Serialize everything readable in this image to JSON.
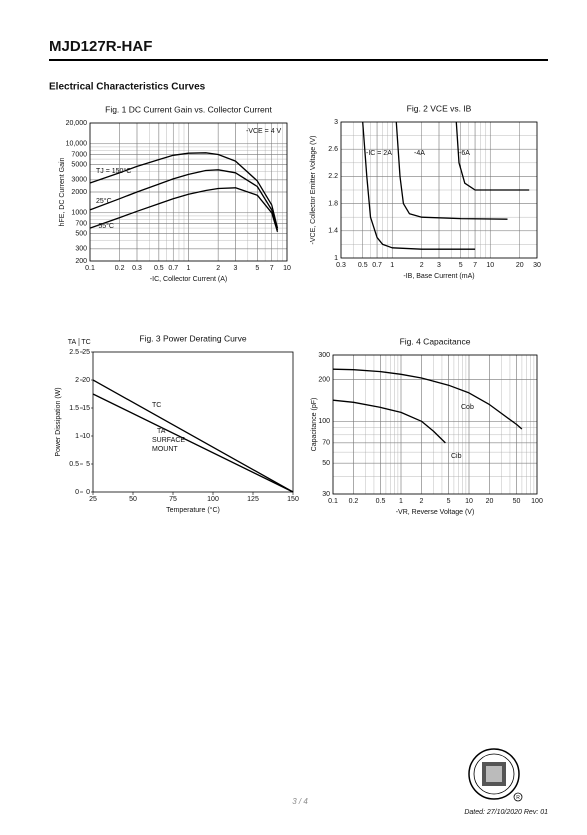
{
  "header": {
    "title": "MJD127R-HAF",
    "section_title": "Electrical Characteristics Curves"
  },
  "footer": {
    "page": "3 / 4",
    "dated": "Dated: 27/10/2020 Rev: 01"
  },
  "chart_data": [
    {
      "type": "line",
      "title": "Fig. 1 DC Current Gain vs. Collector Current",
      "x_label": "-IC, Collector Current (A)",
      "y_label": "hFE, DC Current Gain",
      "annotation": "-VCE = 4 V",
      "xlog": true,
      "ylog": true,
      "grid": true,
      "minor_grid": true,
      "xlim": [
        0.1,
        10
      ],
      "ylim": [
        200,
        20000
      ],
      "xticks": [
        0.1,
        0.2,
        0.3,
        0.5,
        0.7,
        1,
        2,
        3,
        5,
        7,
        10
      ],
      "yticks": [
        200,
        300,
        500,
        700,
        1000,
        2000,
        3000,
        5000,
        7000,
        {
          "value": 10000,
          "label": "10,000"
        },
        {
          "value": 20000,
          "label": "20,000"
        }
      ],
      "series": [
        {
          "name": "TJ = 150°C",
          "color": "#000000",
          "x": [
            0.1,
            0.2,
            0.3,
            0.5,
            0.7,
            1,
            1.5,
            2,
            3,
            5,
            7,
            8
          ],
          "values": [
            2700,
            3800,
            4700,
            5900,
            6800,
            7300,
            7400,
            7000,
            5600,
            2900,
            1300,
            600
          ]
        },
        {
          "name": "25°C",
          "color": "#000000",
          "x": [
            0.1,
            0.2,
            0.3,
            0.5,
            0.7,
            1,
            1.5,
            2,
            3,
            5,
            7,
            8
          ],
          "values": [
            1100,
            1600,
            2000,
            2600,
            3100,
            3600,
            4100,
            4200,
            3800,
            2400,
            1100,
            560
          ]
        },
        {
          "name": "-55°C",
          "color": "#000000",
          "x": [
            0.1,
            0.2,
            0.3,
            0.5,
            0.7,
            1,
            1.5,
            2,
            3,
            5,
            7,
            8
          ],
          "values": [
            600,
            850,
            1050,
            1350,
            1600,
            1850,
            2100,
            2250,
            2300,
            1800,
            1000,
            530
          ]
        }
      ]
    },
    {
      "type": "line",
      "title": "Fig. 2 VCE vs. IB",
      "x_label": "-IB, Base Current (mA)",
      "y_label": "-VCE, Collector Emitter Voltage (V)",
      "xlog": true,
      "ylog": false,
      "grid": true,
      "minor_grid": true,
      "xlim": [
        0.3,
        30
      ],
      "ylim": [
        1,
        3
      ],
      "xticks": [
        0.3,
        0.5,
        0.7,
        1,
        2,
        3,
        5,
        7,
        10,
        20,
        30
      ],
      "yticks": [
        1,
        1.4,
        1.8,
        2.2,
        2.6,
        3
      ],
      "series": [
        {
          "name": "-IC = 2A",
          "color": "#000000",
          "x": [
            0.5,
            0.55,
            0.6,
            0.7,
            0.8,
            1,
            2,
            7
          ],
          "values": [
            3,
            2.2,
            1.6,
            1.3,
            1.2,
            1.15,
            1.13,
            1.13
          ]
        },
        {
          "name": "-4A",
          "color": "#000000",
          "x": [
            1.1,
            1.2,
            1.3,
            1.5,
            2,
            5,
            15
          ],
          "values": [
            3,
            2.2,
            1.8,
            1.65,
            1.6,
            1.58,
            1.57
          ]
        },
        {
          "name": "-6A",
          "color": "#000000",
          "x": [
            4.5,
            4.8,
            5.5,
            7,
            10,
            25
          ],
          "values": [
            3,
            2.4,
            2.1,
            2.0,
            2.0,
            2.0
          ]
        }
      ]
    },
    {
      "type": "line",
      "title": "Fig. 3 Power Derating Curve",
      "x_label": "Temperature (°C)",
      "y_label": "Power Dissipation (W)",
      "y_axis_title": "TA",
      "y2_axis_title": "TC",
      "xlog": false,
      "ylog": false,
      "grid": false,
      "xlim": [
        25,
        150
      ],
      "ylim": [
        0,
        2.5
      ],
      "y2lim": [
        0,
        25
      ],
      "xticks": [
        25,
        50,
        75,
        100,
        125,
        150
      ],
      "yticks": [
        0,
        0.5,
        1,
        1.5,
        2,
        2.5
      ],
      "y2ticks": [
        0,
        5,
        10,
        15,
        20,
        25
      ],
      "series": [
        {
          "name": "TC",
          "color": "#000000",
          "axis": "y2",
          "x": [
            25,
            150
          ],
          "values": [
            20,
            0
          ]
        },
        {
          "name": "TA",
          "color": "#000000",
          "x": [
            25,
            150
          ],
          "values": [
            1.75,
            0
          ],
          "annotations": [
            "SURFACE",
            "MOUNT"
          ]
        }
      ]
    },
    {
      "type": "line",
      "title": "Fig. 4 Capacitance",
      "x_label": "-VR, Reverse Voltage (V)",
      "y_label": "Capacitance (pF)",
      "xlog": true,
      "ylog": true,
      "grid": true,
      "minor_grid": true,
      "xlim": [
        0.1,
        100
      ],
      "ylim": [
        30,
        300
      ],
      "xticks": [
        0.1,
        0.2,
        0.5,
        1,
        2,
        5,
        10,
        20,
        50,
        100
      ],
      "yticks": [
        30,
        50,
        70,
        100,
        200,
        300
      ],
      "series": [
        {
          "name": "Cob",
          "color": "#000000",
          "x": [
            0.1,
            0.2,
            0.5,
            1,
            2,
            5,
            10,
            20,
            50,
            60
          ],
          "values": [
            237,
            235,
            228,
            218,
            205,
            182,
            160,
            132,
            95,
            88
          ]
        },
        {
          "name": "Cib",
          "color": "#000000",
          "x": [
            0.1,
            0.2,
            0.5,
            1,
            2,
            3,
            4.5
          ],
          "values": [
            142,
            137,
            126,
            116,
            100,
            85,
            70
          ]
        }
      ]
    }
  ]
}
